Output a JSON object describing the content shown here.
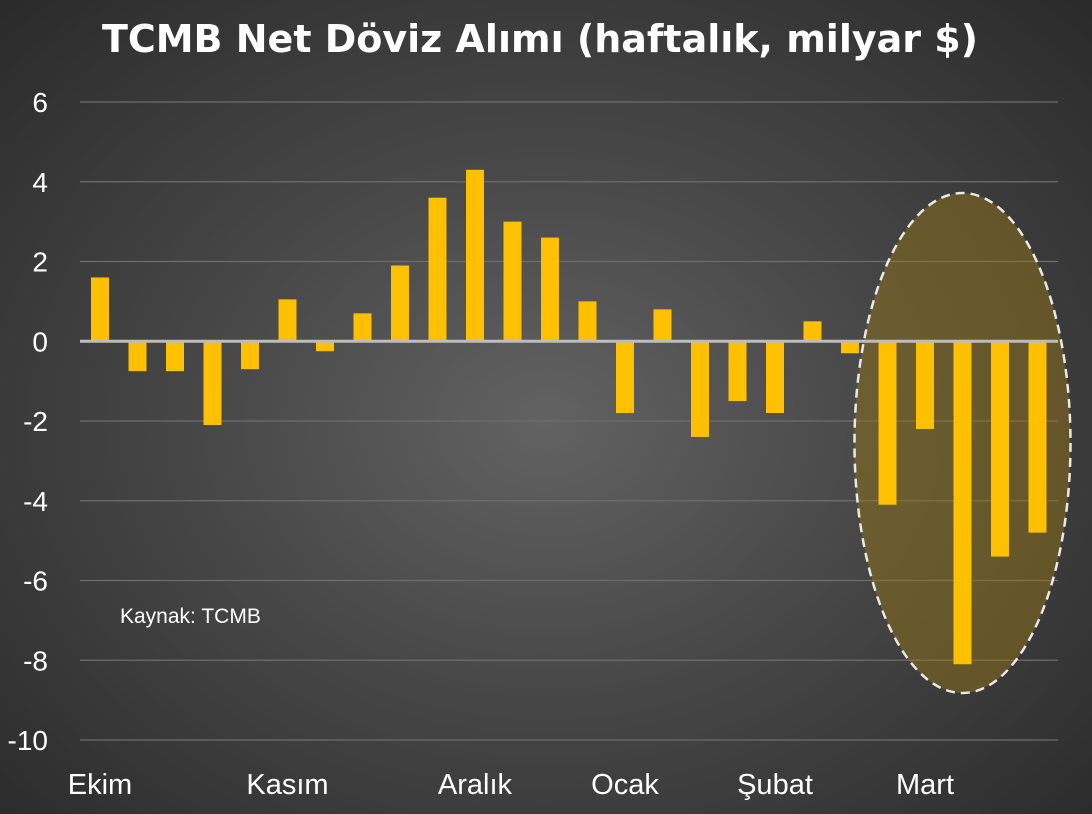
{
  "chart_data": {
    "type": "bar",
    "title": "TCMB Net Döviz Alımı (haftalık, milyar $)",
    "xlabel": "",
    "ylabel": "",
    "ylim": [
      -10,
      6
    ],
    "yticks": [
      "6",
      "4",
      "2",
      "0",
      "-2",
      "-4",
      "-6",
      "-8",
      "-10"
    ],
    "grid": true,
    "month_labels": [
      "Ekim",
      "Kasım",
      "Aralık",
      "Ocak",
      "Şubat",
      "Mart"
    ],
    "values": [
      1.6,
      -0.75,
      -0.75,
      -2.1,
      -0.7,
      1.05,
      -0.25,
      0.7,
      1.9,
      3.6,
      4.3,
      3.0,
      2.6,
      1.0,
      -1.8,
      0.8,
      -2.4,
      -1.5,
      -1.8,
      0.5,
      -0.3,
      -4.1,
      -2.2,
      -8.1,
      -5.4,
      -4.8
    ],
    "bar_color": "#ffc000",
    "highlight": "last five bars circled (Mart)",
    "annotation": "Kaynak: TCMB"
  }
}
